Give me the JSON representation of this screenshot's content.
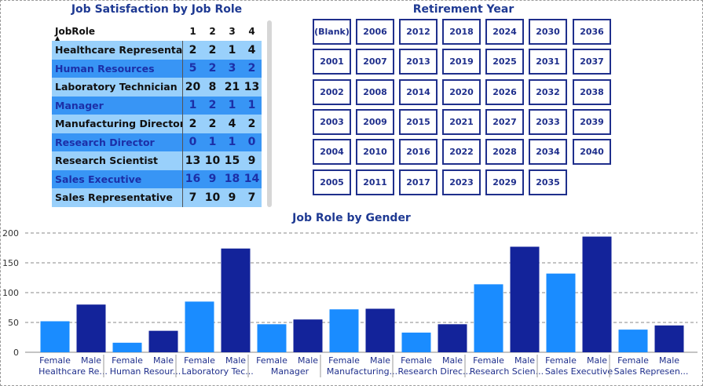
{
  "matrix": {
    "title": "Job Satisfaction by Job Role",
    "row_header": "JobRole",
    "columns": [
      "1",
      "2",
      "3",
      "4"
    ],
    "rows": [
      {
        "role": "Healthcare Representative",
        "values": [
          "2",
          "2",
          "1",
          "4"
        ]
      },
      {
        "role": "Human Resources",
        "values": [
          "5",
          "2",
          "3",
          "2"
        ]
      },
      {
        "role": "Laboratory Technician",
        "values": [
          "20",
          "8",
          "21",
          "13"
        ]
      },
      {
        "role": "Manager",
        "values": [
          "1",
          "2",
          "1",
          "1"
        ]
      },
      {
        "role": "Manufacturing Director",
        "values": [
          "2",
          "2",
          "4",
          "2"
        ]
      },
      {
        "role": "Research Director",
        "values": [
          "0",
          "1",
          "1",
          "0"
        ]
      },
      {
        "role": "Research Scientist",
        "values": [
          "13",
          "10",
          "15",
          "9"
        ]
      },
      {
        "role": "Sales Executive",
        "values": [
          "16",
          "9",
          "18",
          "14"
        ]
      },
      {
        "role": "Sales Representative",
        "values": [
          "7",
          "10",
          "9",
          "7"
        ]
      }
    ]
  },
  "slicer": {
    "title": "Retirement Year",
    "items": [
      "(Blank)",
      "2006",
      "2012",
      "2018",
      "2024",
      "2030",
      "2036",
      "2001",
      "2007",
      "2013",
      "2019",
      "2025",
      "2031",
      "2037",
      "2002",
      "2008",
      "2014",
      "2020",
      "2026",
      "2032",
      "2038",
      "2003",
      "2009",
      "2015",
      "2021",
      "2027",
      "2033",
      "2039",
      "2004",
      "2010",
      "2016",
      "2022",
      "2028",
      "2034",
      "2040",
      "2005",
      "2011",
      "2017",
      "2023",
      "2029",
      "2035"
    ]
  },
  "chart_data": {
    "type": "bar",
    "title": "Job Role by Gender",
    "ylim": [
      0,
      200
    ],
    "yticks": [
      0,
      50,
      100,
      150,
      200
    ],
    "grid": true,
    "colors": {
      "Female": "#1a8cff",
      "Male": "#13239a"
    },
    "groups": [
      {
        "label": "Healthcare Re...",
        "bars": [
          {
            "label": "Female",
            "value": 52
          },
          {
            "label": "Male",
            "value": 80
          }
        ]
      },
      {
        "label": "Human Resour...",
        "bars": [
          {
            "label": "Female",
            "value": 16
          },
          {
            "label": "Male",
            "value": 36
          }
        ]
      },
      {
        "label": "Laboratory Tec...",
        "bars": [
          {
            "label": "Female",
            "value": 85
          },
          {
            "label": "Male",
            "value": 174
          }
        ]
      },
      {
        "label": "Manager",
        "bars": [
          {
            "label": "Female",
            "value": 47
          },
          {
            "label": "Male",
            "value": 55
          }
        ]
      },
      {
        "label": "Manufacturing...",
        "bars": [
          {
            "label": "Female",
            "value": 72
          },
          {
            "label": "Male",
            "value": 73
          }
        ]
      },
      {
        "label": "Research Direc...",
        "bars": [
          {
            "label": "Female",
            "value": 33
          },
          {
            "label": "Male",
            "value": 47
          }
        ]
      },
      {
        "label": "Research Scien...",
        "bars": [
          {
            "label": "Female",
            "value": 114
          },
          {
            "label": "Male",
            "value": 177
          }
        ]
      },
      {
        "label": "Sales Executive",
        "bars": [
          {
            "label": "Female",
            "value": 132
          },
          {
            "label": "Male",
            "value": 194
          }
        ]
      },
      {
        "label": "Sales Represen...",
        "bars": [
          {
            "label": "Female",
            "value": 38
          },
          {
            "label": "Male",
            "value": 45
          }
        ]
      }
    ]
  }
}
